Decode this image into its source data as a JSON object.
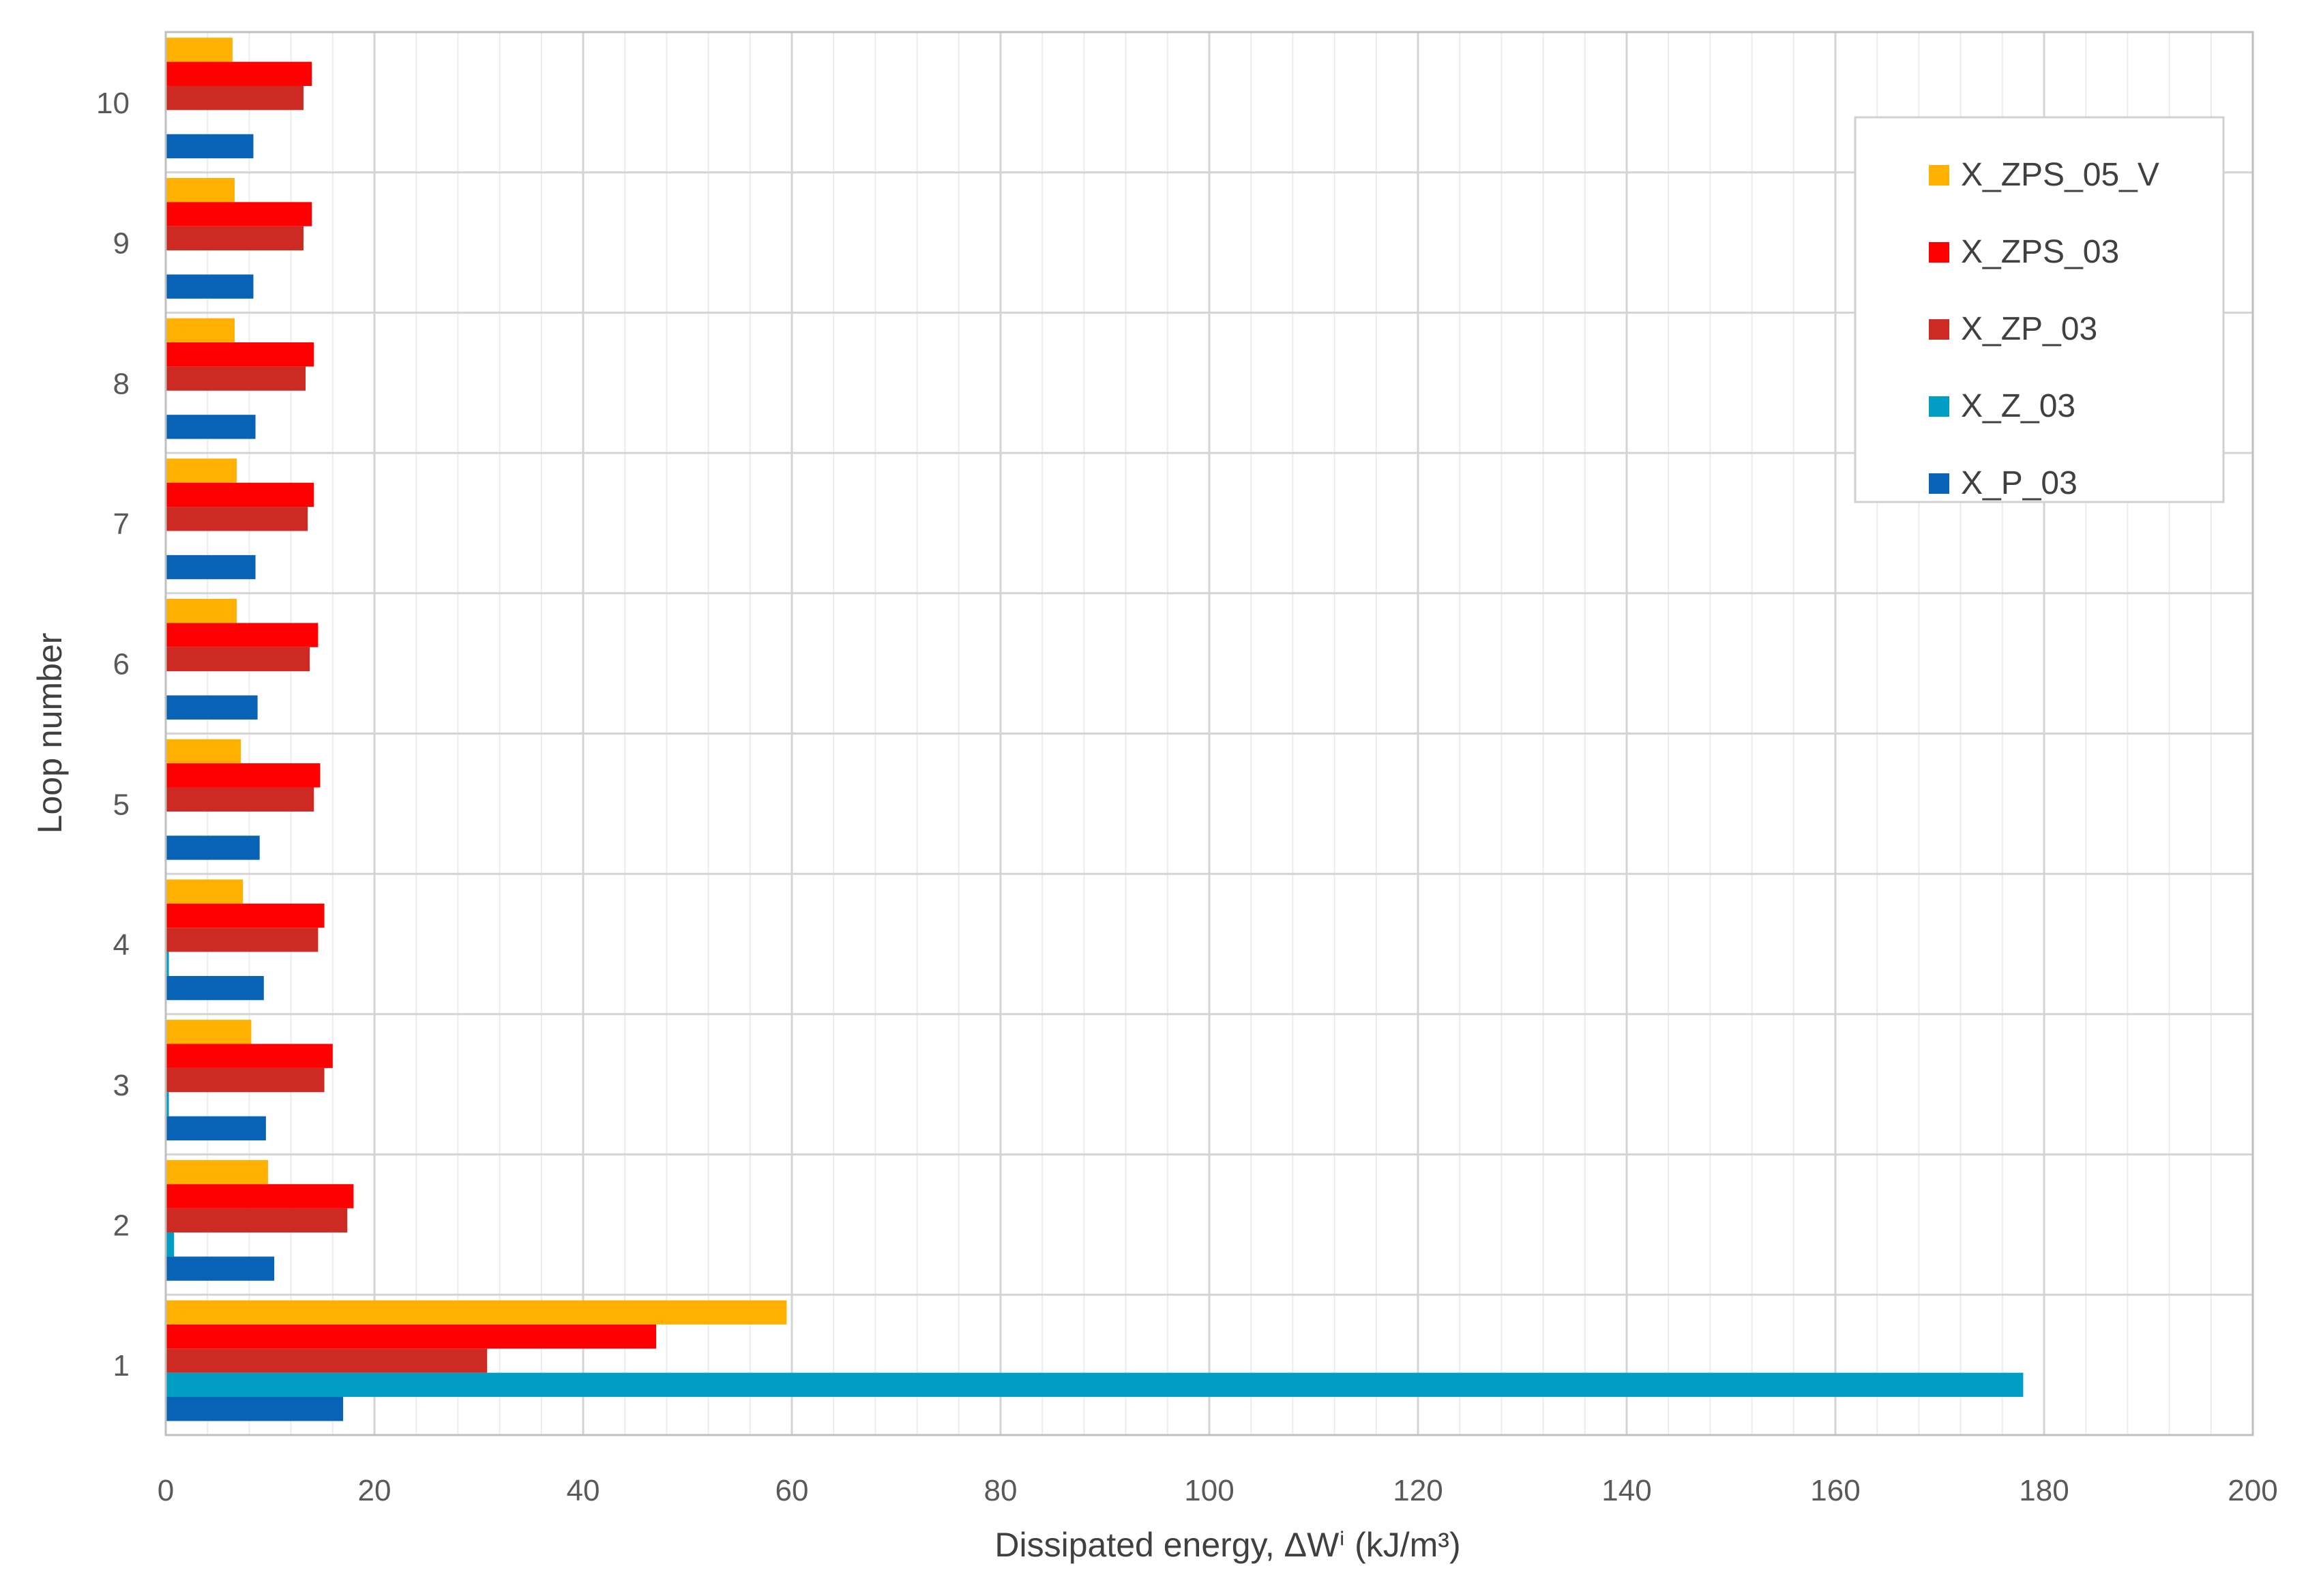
{
  "chart_data": {
    "type": "bar",
    "orientation": "horizontal",
    "categories": [
      "1",
      "2",
      "3",
      "4",
      "5",
      "6",
      "7",
      "8",
      "9",
      "10"
    ],
    "series": [
      {
        "name": "X_ZPS_05_V",
        "color": "#FFB000",
        "values": [
          59.5,
          9.8,
          8.2,
          7.4,
          7.2,
          6.8,
          6.8,
          6.6,
          6.6,
          6.4
        ]
      },
      {
        "name": "X_ZPS_03",
        "color": "#FF0000",
        "values": [
          47.0,
          18.0,
          16.0,
          15.2,
          14.8,
          14.6,
          14.2,
          14.2,
          14.0,
          14.0
        ]
      },
      {
        "name": "X_ZP_03",
        "color": "#CC2A22",
        "values": [
          30.8,
          17.4,
          15.2,
          14.6,
          14.2,
          13.8,
          13.6,
          13.4,
          13.2,
          13.2
        ]
      },
      {
        "name": "X_Z_03",
        "color": "#009DC4",
        "values": [
          178.0,
          0.8,
          0.3,
          0.3,
          0.0,
          0.0,
          0.0,
          0.0,
          0.0,
          0.0
        ]
      },
      {
        "name": "X_P_03",
        "color": "#0862B5",
        "values": [
          17.0,
          10.4,
          9.6,
          9.4,
          9.0,
          8.8,
          8.6,
          8.6,
          8.4,
          8.4
        ]
      }
    ],
    "xlabel": "Dissipated energy, ΔWⁱ (kJ/m³)",
    "ylabel": "Loop number",
    "xlim": [
      0,
      200
    ],
    "xticks": [
      "0",
      "20",
      "40",
      "60",
      "80",
      "100",
      "120",
      "140",
      "160",
      "180",
      "200"
    ],
    "grid": true,
    "legend_position": "top-right"
  }
}
